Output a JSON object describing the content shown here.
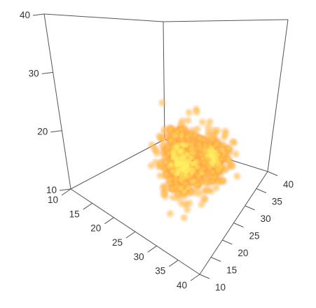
{
  "chart_data": {
    "type": "scatter",
    "title": "",
    "xlabel": "",
    "ylabel": "",
    "zlabel": "",
    "xlim": [
      10,
      40
    ],
    "ylim": [
      10,
      40
    ],
    "zlim": [
      10,
      40
    ],
    "x_ticks": [
      "10",
      "15",
      "20",
      "25",
      "30",
      "35",
      "40"
    ],
    "y_ticks": [
      "10",
      "15",
      "20",
      "25",
      "30",
      "35",
      "40"
    ],
    "z_ticks": [
      "10",
      "20",
      "30",
      "40"
    ],
    "grid": false,
    "box": "back panels only",
    "point_style": "translucent glow, red-orange edges to yellow core",
    "colors": {
      "core": "#fff060",
      "mid": "#ffc21a",
      "edge": "#ff8040"
    },
    "series": [
      {
        "description": "left cluster",
        "center": {
          "x": 17,
          "y": 28,
          "z": 19
        },
        "spread": {
          "x": 4,
          "y": 4,
          "z": 3.5
        },
        "n": 260
      },
      {
        "description": "right tall cluster",
        "center": {
          "x": 17,
          "y": 16,
          "z": 28
        },
        "spread": {
          "x": 4,
          "y": 4,
          "z": 7
        },
        "n": 560
      }
    ]
  }
}
